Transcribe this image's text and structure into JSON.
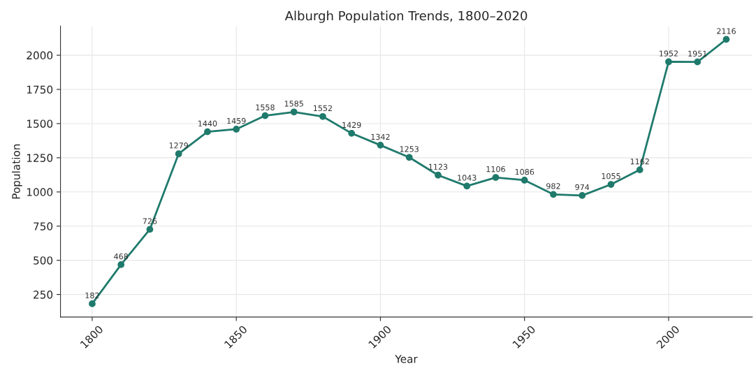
{
  "chart_data": {
    "type": "line",
    "title": "Alburgh Population Trends, 1800–2020",
    "xlabel": "Year",
    "ylabel": "Population",
    "x": [
      1800,
      1810,
      1820,
      1830,
      1840,
      1850,
      1860,
      1870,
      1880,
      1890,
      1900,
      1910,
      1920,
      1930,
      1940,
      1950,
      1960,
      1970,
      1980,
      1990,
      2000,
      2010,
      2020
    ],
    "series": [
      {
        "color": "#1f7a6c",
        "values": [
          182,
          468,
          726,
          1279,
          1440,
          1459,
          1558,
          1585,
          1552,
          1429,
          1342,
          1253,
          1123,
          1043,
          1106,
          1086,
          982,
          974,
          1055,
          1162,
          1952,
          1951,
          2116
        ]
      }
    ],
    "xlim": [
      1789,
      2029
    ],
    "ylim": [
      85,
      2213
    ],
    "xticks": [
      1800,
      1850,
      1900,
      1950,
      2000
    ],
    "yticks": [
      250,
      500,
      750,
      1000,
      1250,
      1500,
      1750,
      2000
    ],
    "grid": true,
    "marker": "circle",
    "line_style": "solid",
    "data_labels": true
  }
}
